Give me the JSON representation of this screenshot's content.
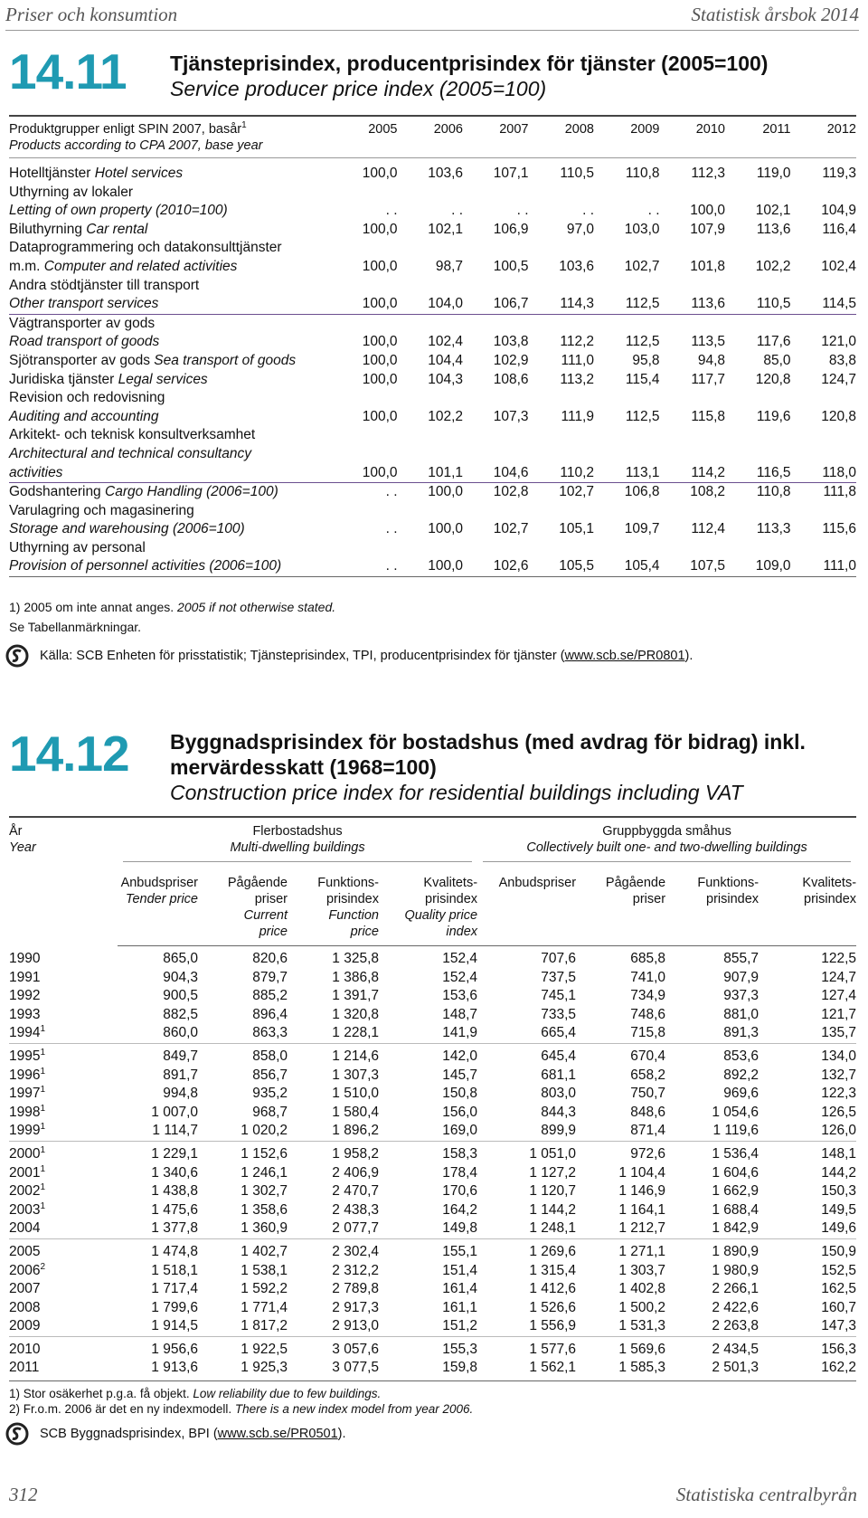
{
  "header": {
    "left": "Priser och konsumtion",
    "right": "Statistisk årsbok 2014"
  },
  "table_14_11": {
    "number": "14.11",
    "title": "Tjänsteprisindex, producentprisindex för tjänster (2005=100)",
    "subtitle": "Service producer price index (2005=100)",
    "stub_header": [
      [
        {
          "t": "Produktgrupper enligt SPIN 2007, basår"
        },
        {
          "t": "1",
          "sup": true
        }
      ],
      [
        {
          "t": "Products according to CPA 2007, base year",
          "i": true
        }
      ]
    ],
    "columns": [
      "2005",
      "2006",
      "2007",
      "2008",
      "2009",
      "2010",
      "2011",
      "2012"
    ],
    "rows": [
      {
        "lines": [
          [
            {
              "t": "Hotelltjänster "
            },
            {
              "t": "Hotel services",
              "i": true
            }
          ]
        ],
        "values": [
          "100,0",
          "103,6",
          "107,1",
          "110,5",
          "110,8",
          "112,3",
          "119,0",
          "119,3"
        ]
      },
      {
        "lines": [
          [
            {
              "t": "Uthyrning av lokaler"
            }
          ],
          [
            {
              "t": "Letting of own property (2010=100)",
              "i": true
            }
          ]
        ],
        "values": [
          ". .",
          ". .",
          ". .",
          ". .",
          ". .",
          "100,0",
          "102,1",
          "104,9"
        ]
      },
      {
        "lines": [
          [
            {
              "t": "Biluthyrning "
            },
            {
              "t": "Car rental",
              "i": true
            }
          ]
        ],
        "values": [
          "100,0",
          "102,1",
          "106,9",
          "97,0",
          "103,0",
          "107,9",
          "113,6",
          "116,4"
        ]
      },
      {
        "lines": [
          [
            {
              "t": "Dataprogrammering och datakonsulttjänster"
            }
          ],
          [
            {
              "t": "m.m. "
            },
            {
              "t": "Computer and related activities",
              "i": true
            }
          ]
        ],
        "values": [
          "100,0",
          "98,7",
          "100,5",
          "103,6",
          "102,7",
          "101,8",
          "102,2",
          "102,4"
        ]
      },
      {
        "lines": [
          [
            {
              "t": "Andra stödtjänster till transport"
            }
          ],
          [
            {
              "t": "Other transport services",
              "i": true
            }
          ]
        ],
        "values": [
          "100,0",
          "104,0",
          "106,7",
          "114,3",
          "112,5",
          "113,6",
          "110,5",
          "114,5"
        ],
        "rule": true
      },
      {
        "lines": [
          [
            {
              "t": "Vägtransporter av gods"
            }
          ],
          [
            {
              "t": "Road transport of goods",
              "i": true
            }
          ]
        ],
        "values": [
          "100,0",
          "102,4",
          "103,8",
          "112,2",
          "112,5",
          "113,5",
          "117,6",
          "121,0"
        ]
      },
      {
        "lines": [
          [
            {
              "t": "Sjötransporter av gods "
            },
            {
              "t": "Sea transport of goods",
              "i": true
            }
          ]
        ],
        "values": [
          "100,0",
          "104,4",
          "102,9",
          "111,0",
          "95,8",
          "94,8",
          "85,0",
          "83,8"
        ]
      },
      {
        "lines": [
          [
            {
              "t": "Juridiska tjänster "
            },
            {
              "t": "Legal services",
              "i": true
            }
          ]
        ],
        "values": [
          "100,0",
          "104,3",
          "108,6",
          "113,2",
          "115,4",
          "117,7",
          "120,8",
          "124,7"
        ]
      },
      {
        "lines": [
          [
            {
              "t": "Revision och redovisning"
            }
          ],
          [
            {
              "t": "Auditing and accounting",
              "i": true
            }
          ]
        ],
        "values": [
          "100,0",
          "102,2",
          "107,3",
          "111,9",
          "112,5",
          "115,8",
          "119,6",
          "120,8"
        ]
      },
      {
        "lines": [
          [
            {
              "t": "Arkitekt- och teknisk konsultverksamhet"
            }
          ],
          [
            {
              "t": "Architectural and technical consultancy",
              "i": true
            }
          ],
          [
            {
              "t": "activities",
              "i": true
            }
          ]
        ],
        "values": [
          "100,0",
          "101,1",
          "104,6",
          "110,2",
          "113,1",
          "114,2",
          "116,5",
          "118,0"
        ],
        "rule": true
      },
      {
        "lines": [
          [
            {
              "t": "Godshantering "
            },
            {
              "t": "Cargo Handling (2006=100)",
              "i": true
            }
          ]
        ],
        "values": [
          ". .",
          "100,0",
          "102,8",
          "102,7",
          "106,8",
          "108,2",
          "110,8",
          "111,8"
        ]
      },
      {
        "lines": [
          [
            {
              "t": "Varulagring och magasinering"
            }
          ],
          [
            {
              "t": "Storage and warehousing (2006=100)",
              "i": true
            }
          ]
        ],
        "values": [
          ". .",
          "100,0",
          "102,7",
          "105,1",
          "109,7",
          "112,4",
          "113,3",
          "115,6"
        ]
      },
      {
        "lines": [
          [
            {
              "t": "Uthyrning av personal"
            }
          ],
          [
            {
              "t": "Provision of personnel activities (2006=100)",
              "i": true
            }
          ]
        ],
        "values": [
          ". .",
          "100,0",
          "102,6",
          "105,5",
          "105,4",
          "107,5",
          "109,0",
          "111,0"
        ]
      }
    ],
    "notes": [
      [
        {
          "t": "1) 2005 om inte annat anges. "
        },
        {
          "t": "2005 if not otherwise stated.",
          "i": true
        }
      ],
      [
        {
          "t": "Se Tabellanmärkningar."
        }
      ]
    ],
    "source": [
      {
        "t": "Källa: SCB Enheten för prisstatistik; Tjänsteprisindex, TPI, producentprisindex för tjänster ("
      },
      {
        "t": "www.scb.se/PR0801",
        "link": true
      },
      {
        "t": ")."
      }
    ]
  },
  "table_14_12": {
    "number": "14.12",
    "title": "Byggnadsprisindex för bostadshus (med avdrag för bidrag) inkl. mervärdesskatt (1968=100)",
    "subtitle": "Construction price index for residential buildings including VAT",
    "stub_header": {
      "sv": "År",
      "en": "Year"
    },
    "groups": [
      {
        "sv": "Flerbostadshus",
        "en": "Multi-dwelling buildings"
      },
      {
        "sv": "Gruppbyggda småhus",
        "en": "Collectively built one- and two-dwelling buildings"
      }
    ],
    "subcolumns": [
      {
        "sv": [
          "Anbudspriser"
        ],
        "en": [
          "Tender price"
        ]
      },
      {
        "sv": [
          "Pågående",
          "priser"
        ],
        "en": [
          "Current",
          "price"
        ]
      },
      {
        "sv": [
          "Funktions-",
          "prisindex"
        ],
        "en": [
          "Function",
          "price"
        ]
      },
      {
        "sv": [
          "Kvalitets-",
          "prisindex"
        ],
        "en": [
          "Quality price",
          "index"
        ]
      },
      {
        "sv": [
          "Anbudspriser"
        ],
        "en": []
      },
      {
        "sv": [
          "Pågående",
          "priser"
        ],
        "en": []
      },
      {
        "sv": [
          "Funktions-",
          "prisindex"
        ],
        "en": []
      },
      {
        "sv": [
          "Kvalitets-",
          "prisindex"
        ],
        "en": []
      }
    ],
    "row_groups": [
      [
        {
          "year": "1990",
          "values": [
            "865,0",
            "820,6",
            "1 325,8",
            "152,4",
            "707,6",
            "685,8",
            "855,7",
            "122,5"
          ]
        },
        {
          "year": "1991",
          "values": [
            "904,3",
            "879,7",
            "1 386,8",
            "152,4",
            "737,5",
            "741,0",
            "907,9",
            "124,7"
          ]
        },
        {
          "year": "1992",
          "values": [
            "900,5",
            "885,2",
            "1 391,7",
            "153,6",
            "745,1",
            "734,9",
            "937,3",
            "127,4"
          ]
        },
        {
          "year": "1993",
          "values": [
            "882,5",
            "896,4",
            "1 320,8",
            "148,7",
            "733,5",
            "748,6",
            "881,0",
            "121,7"
          ]
        },
        {
          "year": "1994",
          "sup": "1",
          "values": [
            "860,0",
            "863,3",
            "1 228,1",
            "141,9",
            "665,4",
            "715,8",
            "891,3",
            "135,7"
          ]
        }
      ],
      [
        {
          "year": "1995",
          "sup": "1",
          "values": [
            "849,7",
            "858,0",
            "1 214,6",
            "142,0",
            "645,4",
            "670,4",
            "853,6",
            "134,0"
          ]
        },
        {
          "year": "1996",
          "sup": "1",
          "values": [
            "891,7",
            "856,7",
            "1 307,3",
            "145,7",
            "681,1",
            "658,2",
            "892,2",
            "132,7"
          ]
        },
        {
          "year": "1997",
          "sup": "1",
          "values": [
            "994,8",
            "935,2",
            "1 510,0",
            "150,8",
            "803,0",
            "750,7",
            "969,6",
            "122,3"
          ]
        },
        {
          "year": "1998",
          "sup": "1",
          "values": [
            "1 007,0",
            "968,7",
            "1 580,4",
            "156,0",
            "844,3",
            "848,6",
            "1 054,6",
            "126,5"
          ]
        },
        {
          "year": "1999",
          "sup": "1",
          "values": [
            "1 114,7",
            "1 020,2",
            "1 896,2",
            "169,0",
            "899,9",
            "871,4",
            "1 119,6",
            "126,0"
          ]
        }
      ],
      [
        {
          "year": "2000",
          "sup": "1",
          "values": [
            "1 229,1",
            "1 152,6",
            "1 958,2",
            "158,3",
            "1 051,0",
            "972,6",
            "1 536,4",
            "148,1"
          ]
        },
        {
          "year": "2001",
          "sup": "1",
          "values": [
            "1 340,6",
            "1 246,1",
            "2 406,9",
            "178,4",
            "1 127,2",
            "1 104,4",
            "1 604,6",
            "144,2"
          ]
        },
        {
          "year": "2002",
          "sup": "1",
          "values": [
            "1 438,8",
            "1 302,7",
            "2 470,7",
            "170,6",
            "1 120,7",
            "1 146,9",
            "1 662,9",
            "150,3"
          ]
        },
        {
          "year": "2003",
          "sup": "1",
          "values": [
            "1 475,6",
            "1 358,6",
            "2 438,3",
            "164,2",
            "1 144,2",
            "1 164,1",
            "1 688,4",
            "149,5"
          ]
        },
        {
          "year": "2004",
          "values": [
            "1 377,8",
            "1 360,9",
            "2 077,7",
            "149,8",
            "1 248,1",
            "1 212,7",
            "1 842,9",
            "149,6"
          ]
        }
      ],
      [
        {
          "year": "2005",
          "values": [
            "1 474,8",
            "1 402,7",
            "2 302,4",
            "155,1",
            "1 269,6",
            "1 271,1",
            "1 890,9",
            "150,9"
          ]
        },
        {
          "year": "2006",
          "sup": "2",
          "values": [
            "1 518,1",
            "1 538,1",
            "2 312,2",
            "151,4",
            "1 315,4",
            "1 303,7",
            "1 980,9",
            "152,5"
          ]
        },
        {
          "year": "2007",
          "values": [
            "1 717,4",
            "1 592,2",
            "2 789,8",
            "161,4",
            "1 412,6",
            "1 402,8",
            "2 266,1",
            "162,5"
          ]
        },
        {
          "year": "2008",
          "values": [
            "1 799,6",
            "1 771,4",
            "2 917,3",
            "161,1",
            "1 526,6",
            "1 500,2",
            "2 422,6",
            "160,7"
          ]
        },
        {
          "year": "2009",
          "values": [
            "1 914,5",
            "1 817,2",
            "2 913,0",
            "151,2",
            "1 556,9",
            "1 531,3",
            "2 263,8",
            "147,3"
          ]
        }
      ],
      [
        {
          "year": "2010",
          "values": [
            "1 956,6",
            "1 922,5",
            "3 057,6",
            "155,3",
            "1 577,6",
            "1 569,6",
            "2 434,5",
            "156,3"
          ]
        },
        {
          "year": "2011",
          "values": [
            "1 913,6",
            "1 925,3",
            "3 077,5",
            "159,8",
            "1 562,1",
            "1 585,3",
            "2 501,3",
            "162,2"
          ]
        }
      ]
    ],
    "notes": [
      [
        {
          "t": "1) Stor osäkerhet p.g.a. få objekt. "
        },
        {
          "t": "Low reliability due to few buildings.",
          "i": true
        }
      ],
      [
        {
          "t": "2) Fr.o.m. 2006 är det en ny indexmodell. "
        },
        {
          "t": "There is a new index model from year 2006.",
          "i": true
        }
      ]
    ],
    "source": [
      {
        "t": "SCB Byggnadsprisindex, BPI ("
      },
      {
        "t": "www.scb.se/PR0501",
        "link": true
      },
      {
        "t": ")."
      }
    ]
  },
  "footer": {
    "page": "312",
    "publisher": "Statistiska centralbyrån"
  }
}
